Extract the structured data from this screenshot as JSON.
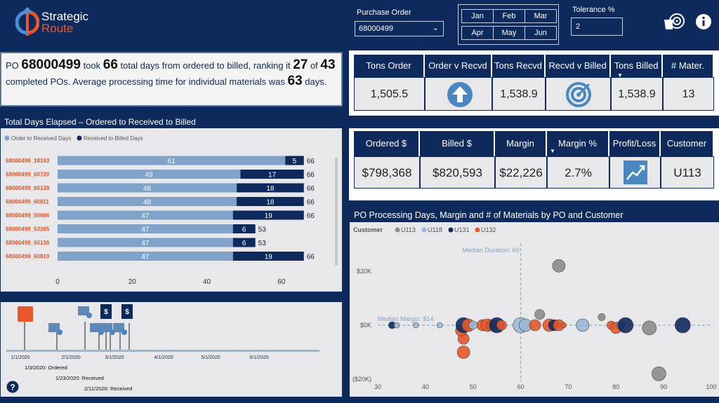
{
  "header": {
    "logo_line1": "Strategic",
    "logo_line2": "Route",
    "po_label": "Purchase Order",
    "po_value": "68000499",
    "months": [
      "Jan",
      "Feb",
      "Mar",
      "Apr",
      "May",
      "Jun"
    ],
    "tolerance_label": "Tolerance %",
    "tolerance_value": "2"
  },
  "summary": {
    "p1": "PO ",
    "po": "68000499",
    "p2": " took ",
    "days": "66",
    "p3": " total days from ordered to billed, ranking it ",
    "rank": "27",
    "p4": " of ",
    "total": "43",
    "p5": " completed POs. Average processing time for individual materials was ",
    "avg": "63",
    "p6": " days."
  },
  "table1": {
    "headers": [
      "Tons Order",
      "Order v Recvd",
      "Tons Recvd",
      "Recvd v Billed",
      "Tons Billed",
      "# Mater."
    ],
    "values": [
      "1,505.5",
      "",
      "1,538.9",
      "",
      "1,538.9",
      "13"
    ]
  },
  "table2": {
    "headers": [
      "Ordered $",
      "Billed $",
      "Margin",
      "Margin %",
      "Profit/Loss",
      "Customer"
    ],
    "values": [
      "$798,368",
      "$820,593",
      "$22,226",
      "2.7%",
      "",
      "U113"
    ]
  },
  "bar_chart_title": "Total Days Elapsed – Ordered to Received to Billed",
  "scatter_title": "PO Processing Days, Margin and # of Materials by PO and Customer",
  "timeline": {
    "dates": [
      "1/1/2020",
      "2/1/2020",
      "3/1/2020",
      "4/1/2020",
      "5/1/2020",
      "6/1/2020"
    ],
    "events": [
      "1/3/2020: Ordered",
      "1/23/2020: Received",
      "2/11/2020: Received"
    ]
  },
  "chart_data": [
    {
      "type": "bar",
      "stacked": true,
      "orientation": "horizontal",
      "title": "Total Days Elapsed – Ordered to Received to Billed",
      "categories": [
        "68000499_18193",
        "68000499_60720",
        "68000499_60139",
        "68000499_60811",
        "68000499_50666",
        "68000499_53265",
        "68000499_60136",
        "68000499_60810"
      ],
      "series": [
        {
          "name": "Order to Received Days",
          "color": "#7fa3c9",
          "values": [
            61,
            49,
            48,
            48,
            47,
            47,
            47,
            47
          ]
        },
        {
          "name": "Received to Billed Days",
          "color": "#0e2a5c",
          "values": [
            5,
            17,
            18,
            18,
            19,
            6,
            6,
            19
          ]
        }
      ],
      "totals": [
        66,
        66,
        66,
        66,
        66,
        53,
        53,
        66
      ],
      "xticks": [
        0,
        20,
        40,
        60
      ],
      "xlim": [
        0,
        70
      ]
    },
    {
      "type": "scatter",
      "title": "PO Processing Days, Margin and # of Materials by PO and Customer",
      "legend_title": "Customer",
      "legend": [
        {
          "name": "U113",
          "color": "#8c8c8c"
        },
        {
          "name": "U118",
          "color": "#9bb8d6"
        },
        {
          "name": "U131",
          "color": "#0e2a5c"
        },
        {
          "name": "U132",
          "color": "#e8582a"
        }
      ],
      "xticks": [
        30,
        40,
        50,
        60,
        70,
        80,
        90,
        100
      ],
      "yticks": [
        "$20K",
        "$0K",
        "($20K)"
      ],
      "xlim": [
        30,
        100
      ],
      "ylim": [
        -20000,
        30000
      ],
      "ref_lines": [
        {
          "label": "Median Duration: 60",
          "axis": "x",
          "value": 60
        },
        {
          "label": "Median Margin: $14",
          "axis": "y",
          "value": 14
        }
      ],
      "points": [
        {
          "x": 33,
          "y": 0,
          "r": 5,
          "c": "U131"
        },
        {
          "x": 34,
          "y": 0,
          "r": 4,
          "c": "U118"
        },
        {
          "x": 38,
          "y": 0,
          "r": 4,
          "c": "U118"
        },
        {
          "x": 43,
          "y": 0,
          "r": 4,
          "c": "U118"
        },
        {
          "x": 48,
          "y": -5000,
          "r": 8,
          "c": "U132"
        },
        {
          "x": 47.5,
          "y": -2000,
          "r": 8,
          "c": "U132"
        },
        {
          "x": 48,
          "y": 0,
          "r": 11,
          "c": "U131"
        },
        {
          "x": 49,
          "y": 0,
          "r": 9,
          "c": "U132"
        },
        {
          "x": 50,
          "y": 0,
          "r": 6,
          "c": "U118"
        },
        {
          "x": 48,
          "y": -10000,
          "r": 9,
          "c": "U132"
        },
        {
          "x": 52,
          "y": 0,
          "r": 8,
          "c": "U132"
        },
        {
          "x": 53,
          "y": 0,
          "r": 9,
          "c": "U132"
        },
        {
          "x": 54,
          "y": 0,
          "r": 8,
          "c": "U132"
        },
        {
          "x": 55,
          "y": 0,
          "r": 11,
          "c": "U131"
        },
        {
          "x": 56,
          "y": 0,
          "r": 7,
          "c": "U132"
        },
        {
          "x": 60,
          "y": 0,
          "r": 11,
          "c": "U118"
        },
        {
          "x": 61,
          "y": 0,
          "r": 9,
          "c": "U118"
        },
        {
          "x": 63,
          "y": 0,
          "r": 8,
          "c": "U132"
        },
        {
          "x": 64,
          "y": 4000,
          "r": 7,
          "c": "U113"
        },
        {
          "x": 66,
          "y": 0,
          "r": 9,
          "c": "U132"
        },
        {
          "x": 67,
          "y": 0,
          "r": 8,
          "c": "U131"
        },
        {
          "x": 68,
          "y": 0,
          "r": 8,
          "c": "U132"
        },
        {
          "x": 69,
          "y": 0,
          "r": 4,
          "c": "U132"
        },
        {
          "x": 73,
          "y": 0,
          "r": 9,
          "c": "U118"
        },
        {
          "x": 68,
          "y": 22000,
          "r": 9,
          "c": "U113"
        },
        {
          "x": 77,
          "y": 3000,
          "r": 5,
          "c": "U113"
        },
        {
          "x": 79,
          "y": 0,
          "r": 6,
          "c": "U132"
        },
        {
          "x": 80,
          "y": -1000,
          "r": 8,
          "c": "U132"
        },
        {
          "x": 81,
          "y": 0,
          "r": 6,
          "c": "U113"
        },
        {
          "x": 82,
          "y": 0,
          "r": 11,
          "c": "U131"
        },
        {
          "x": 87,
          "y": -1000,
          "r": 10,
          "c": "U113"
        },
        {
          "x": 89,
          "y": -18000,
          "r": 10,
          "c": "U113"
        },
        {
          "x": 94,
          "y": 0,
          "r": 11,
          "c": "U131"
        }
      ]
    }
  ]
}
